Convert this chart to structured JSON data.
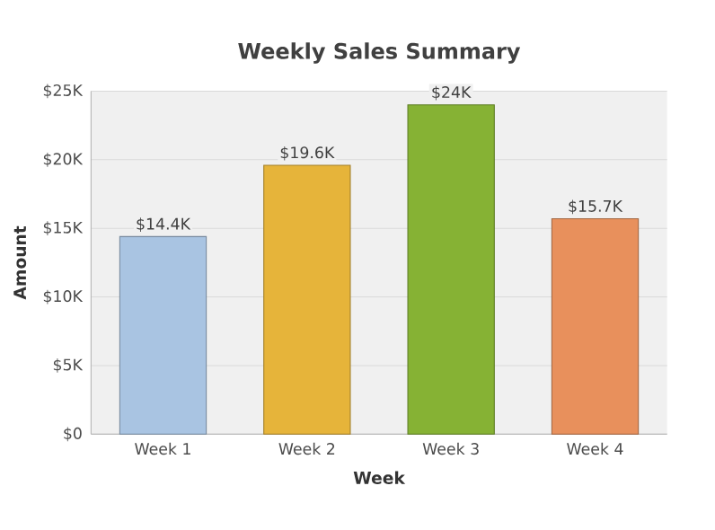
{
  "chart_data": {
    "type": "bar",
    "title": "Weekly Sales Summary",
    "xlabel": "Week",
    "ylabel": "Amount",
    "categories": [
      "Week 1",
      "Week 2",
      "Week 3",
      "Week 4"
    ],
    "values": [
      14400,
      19600,
      24000,
      15700
    ],
    "value_labels": [
      "$14.4K",
      "$19.6K",
      "$24K",
      "$15.7K"
    ],
    "colors": [
      "#a9c4e2",
      "#e6b43a",
      "#86b234",
      "#e8905c"
    ],
    "ylim": [
      0,
      25000
    ],
    "yticks": [
      {
        "value": 0,
        "label": "$0"
      },
      {
        "value": 5000,
        "label": "$5K"
      },
      {
        "value": 10000,
        "label": "$10K"
      },
      {
        "value": 15000,
        "label": "$15K"
      },
      {
        "value": 20000,
        "label": "$20K"
      },
      {
        "value": 25000,
        "label": "$25K"
      }
    ],
    "grid": "y"
  }
}
